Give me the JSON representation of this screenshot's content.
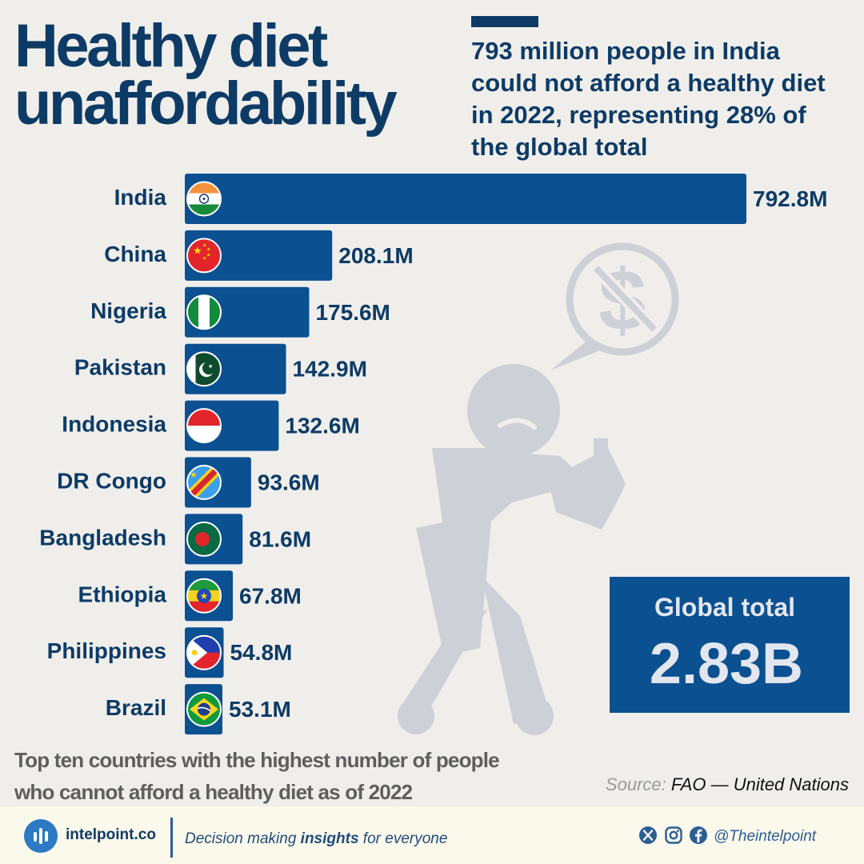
{
  "header": {
    "title_line1": "Healthy diet",
    "title_line2": "unaffordability",
    "subtitle": "793 million people in India could not afford a healthy diet in 2022, representing 28% of the global total"
  },
  "chart_data": {
    "type": "bar",
    "orientation": "horizontal",
    "categories": [
      "India",
      "China",
      "Nigeria",
      "Pakistan",
      "Indonesia",
      "DR Congo",
      "Bangladesh",
      "Ethiopia",
      "Philippines",
      "Brazil"
    ],
    "values": [
      792.8,
      208.1,
      175.6,
      142.9,
      132.6,
      93.6,
      81.6,
      67.8,
      54.8,
      53.1
    ],
    "value_labels": [
      "792.8M",
      "208.1M",
      "175.6M",
      "142.9M",
      "132.6M",
      "93.6M",
      "81.6M",
      "67.8M",
      "54.8M",
      "53.1M"
    ],
    "unit": "M",
    "xlim": [
      0,
      792.8
    ],
    "grid": false,
    "legend": "none",
    "bar_color": "#0b5091"
  },
  "flags": [
    "india-flag-icon",
    "china-flag-icon",
    "nigeria-flag-icon",
    "pakistan-flag-icon",
    "indonesia-flag-icon",
    "dr-congo-flag-icon",
    "bangladesh-flag-icon",
    "ethiopia-flag-icon",
    "philippines-flag-icon",
    "brazil-flag-icon"
  ],
  "illustration": "person-cannot-afford-icon",
  "total": {
    "label": "Global total",
    "value": "2.83B"
  },
  "footnote": "Top ten countries with the highest number of people who cannot afford a healthy diet as of 2022",
  "source": {
    "label": "Source:",
    "text": "FAO — United Nations"
  },
  "footer": {
    "brand": "intelpoint.co",
    "tagline_pre": "Decision making ",
    "tagline_bold": "insights",
    "tagline_post": " for everyone",
    "social_icons": [
      "x-icon",
      "instagram-icon",
      "facebook-icon"
    ],
    "handle": "@Theintelpoint"
  },
  "colors": {
    "background": "#f0eeeb",
    "navy": "#0d3b66",
    "bar": "#0b5091",
    "illustration": "#cdd0d6",
    "footer": "#fbf8ec"
  }
}
